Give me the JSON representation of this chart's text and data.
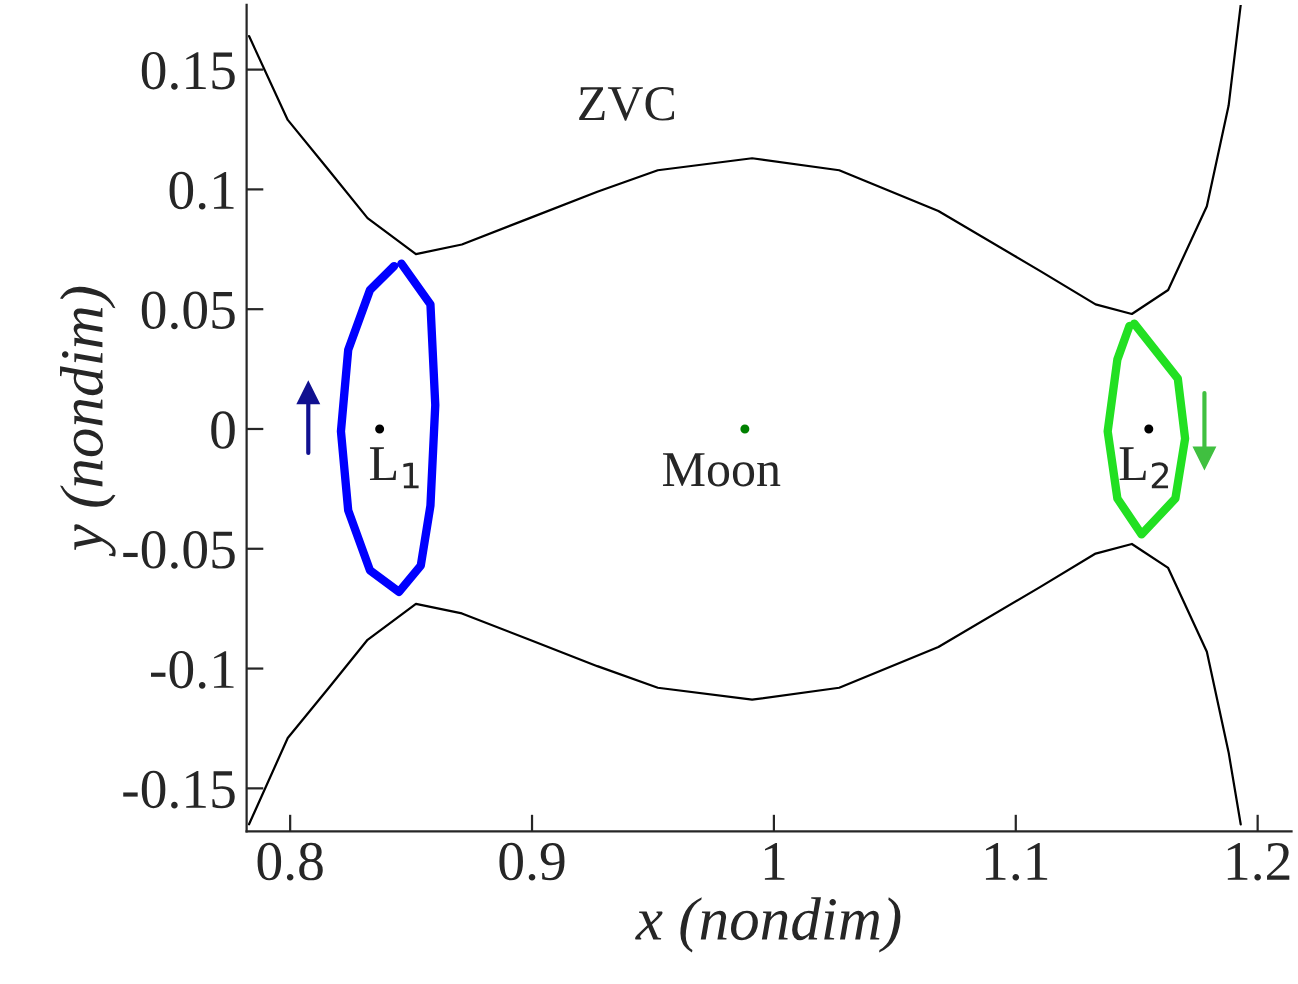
{
  "chart_data": {
    "type": "line",
    "xlabel": "x (nondim)",
    "ylabel": "y (nondim)",
    "xlim": [
      0.782,
      1.214
    ],
    "ylim": [
      -0.168,
      0.177
    ],
    "xticks": [
      0.8,
      0.9,
      1,
      1.1,
      1.2
    ],
    "yticks": [
      -0.15,
      -0.1,
      -0.05,
      0,
      0.05,
      0.1,
      0.15
    ],
    "grid": false,
    "legend": false,
    "marker": "none",
    "line_style": "solid",
    "annotations": [
      {
        "text": "ZVC",
        "x": 0.93,
        "y": 0.099
      },
      {
        "text": "L$_{1}$",
        "x": 0.837,
        "y": 0
      },
      {
        "text": "Moon",
        "x": 0.988,
        "y": 0
      },
      {
        "text": "L$_{2}$",
        "x": 1.155,
        "y": 0
      }
    ],
    "series": [
      {
        "color": "#000000",
        "x": [
          0.783,
          0.799,
          0.816,
          0.832,
          0.852,
          0.871,
          0.899,
          0.927,
          0.952,
          0.991,
          1.027,
          1.068,
          1.11,
          1.133,
          1.148,
          1.163,
          1.179,
          1.188,
          1.193
        ],
        "values": [
          0.164,
          0.129,
          0.108,
          0.088,
          0.073,
          0.077,
          0.088,
          0.099,
          0.108,
          0.113,
          0.108,
          0.091,
          0.066,
          0.052,
          0.048,
          0.058,
          0.093,
          0.135,
          0.177
        ]
      },
      {
        "color": "#000000",
        "x": [
          0.783,
          0.799,
          0.816,
          0.832,
          0.852,
          0.871,
          0.899,
          0.927,
          0.952,
          0.991,
          1.027,
          1.068,
          1.11,
          1.133,
          1.148,
          1.163,
          1.179,
          1.188,
          1.193
        ],
        "values": [
          -0.165,
          -0.129,
          -0.108,
          -0.088,
          -0.073,
          -0.077,
          -0.088,
          -0.099,
          -0.108,
          -0.113,
          -0.108,
          -0.091,
          -0.066,
          -0.052,
          -0.048,
          -0.058,
          -0.093,
          -0.135,
          -0.165
        ]
      },
      {
        "color": "#0000ff",
        "x": [
          0.846,
          0.858,
          0.86,
          0.858,
          0.854,
          0.845,
          0.833,
          0.824,
          0.821,
          0.824,
          0.833,
          0.843
        ],
        "values": [
          0.069,
          0.052,
          0.01,
          -0.032,
          -0.057,
          -0.068,
          -0.059,
          -0.034,
          -0.001,
          0.033,
          0.058,
          0.068
        ]
      },
      {
        "color": "#22e022",
        "x": [
          1.149,
          1.167,
          1.17,
          1.166,
          1.152,
          1.142,
          1.138,
          1.142,
          1.147
        ],
        "values": [
          0.044,
          0.021,
          -0.004,
          -0.029,
          -0.044,
          -0.029,
          -0.001,
          0.029,
          0.043
        ]
      },
      {
        "color": "#101090",
        "marker": "triangle",
        "x": [
          0.8075,
          0.8075
        ],
        "values": [
          -0.01,
          0.015
        ]
      },
      {
        "color": "#40c040",
        "marker": "triangle",
        "x": [
          1.178,
          1.178
        ],
        "values": [
          0.015,
          -0.012
        ]
      },
      {
        "type": "scatter",
        "color": "#000000",
        "marker": "circle",
        "x": [
          0.837,
          1.155
        ],
        "values": [
          0,
          0
        ]
      },
      {
        "type": "scatter",
        "color": "#008000",
        "marker": "circle",
        "x": [
          0.988
        ],
        "values": [
          0
        ]
      }
    ]
  }
}
